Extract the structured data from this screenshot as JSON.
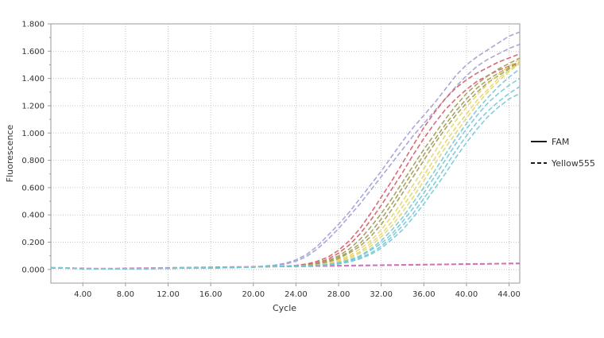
{
  "chart_data": {
    "type": "line",
    "xlabel": "Cycle",
    "ylabel": "Fluorescence",
    "xlim": [
      1,
      45
    ],
    "ylim": [
      -0.1,
      1.8
    ],
    "x_ticks": [
      4,
      8,
      12,
      16,
      20,
      24,
      28,
      32,
      36,
      40,
      44
    ],
    "x_tick_labels": [
      "4.00",
      "8.00",
      "12.00",
      "16.00",
      "20.00",
      "24.00",
      "28.00",
      "32.00",
      "36.00",
      "40.00",
      "44.00"
    ],
    "y_ticks": [
      0,
      0.2,
      0.4,
      0.6,
      0.8,
      1.0,
      1.2,
      1.4,
      1.6,
      1.8
    ],
    "y_tick_labels": [
      "0.000",
      "0.200",
      "0.400",
      "0.600",
      "0.800",
      "1.000",
      "1.200",
      "1.400",
      "1.600",
      "1.800"
    ],
    "grid": true,
    "legend": {
      "placement": "right",
      "entries": [
        {
          "name": "FAM",
          "style": "solid"
        },
        {
          "name": "Yellow555",
          "style": "dashed"
        }
      ]
    },
    "x": [
      1,
      2,
      3,
      4,
      5,
      6,
      7,
      8,
      9,
      10,
      11,
      12,
      13,
      14,
      15,
      16,
      17,
      18,
      19,
      20,
      21,
      22,
      23,
      24,
      25,
      26,
      27,
      28,
      29,
      30,
      31,
      32,
      33,
      34,
      35,
      36,
      37,
      38,
      39,
      40,
      41,
      42,
      43,
      44,
      45
    ],
    "curve_color_keys": [
      "lavender",
      "lavender",
      "red",
      "red",
      "olive",
      "olive",
      "olive",
      "yellow",
      "yellow",
      "yellow",
      "cyan",
      "cyan",
      "cyan",
      "cyan"
    ],
    "curve_values": [
      [
        0.01,
        0.01,
        0.01,
        0.005,
        0.005,
        0.005,
        0.005,
        0.005,
        0.005,
        0.005,
        0.007,
        0.008,
        0.01,
        0.01,
        0.01,
        0.01,
        0.012,
        0.014,
        0.016,
        0.02,
        0.025,
        0.032,
        0.045,
        0.07,
        0.11,
        0.17,
        0.25,
        0.33,
        0.42,
        0.52,
        0.62,
        0.72,
        0.83,
        0.94,
        1.04,
        1.13,
        1.22,
        1.32,
        1.42,
        1.5,
        1.56,
        1.61,
        1.66,
        1.71,
        1.74
      ],
      [
        0.01,
        0.01,
        0.01,
        0.005,
        0.005,
        0.005,
        0.005,
        0.005,
        0.005,
        0.005,
        0.007,
        0.008,
        0.01,
        0.01,
        0.01,
        0.01,
        0.012,
        0.014,
        0.016,
        0.018,
        0.022,
        0.028,
        0.04,
        0.06,
        0.095,
        0.15,
        0.22,
        0.3,
        0.39,
        0.48,
        0.58,
        0.68,
        0.78,
        0.88,
        0.98,
        1.07,
        1.16,
        1.25,
        1.34,
        1.42,
        1.49,
        1.54,
        1.58,
        1.62,
        1.65
      ],
      [
        0.01,
        0.01,
        0.01,
        0.005,
        0.005,
        0.005,
        0.005,
        0.005,
        0.005,
        0.005,
        0.007,
        0.008,
        0.01,
        0.01,
        0.01,
        0.01,
        0.012,
        0.014,
        0.016,
        0.018,
        0.02,
        0.022,
        0.025,
        0.03,
        0.04,
        0.06,
        0.09,
        0.14,
        0.21,
        0.3,
        0.41,
        0.53,
        0.65,
        0.78,
        0.91,
        1.04,
        1.15,
        1.25,
        1.33,
        1.39,
        1.44,
        1.48,
        1.52,
        1.55,
        1.58
      ],
      [
        0.01,
        0.01,
        0.01,
        0.005,
        0.005,
        0.005,
        0.005,
        0.005,
        0.005,
        0.005,
        0.007,
        0.008,
        0.01,
        0.01,
        0.01,
        0.01,
        0.012,
        0.014,
        0.016,
        0.018,
        0.02,
        0.022,
        0.024,
        0.028,
        0.036,
        0.05,
        0.075,
        0.12,
        0.18,
        0.26,
        0.36,
        0.47,
        0.59,
        0.71,
        0.84,
        0.96,
        1.07,
        1.17,
        1.25,
        1.32,
        1.38,
        1.42,
        1.46,
        1.49,
        1.52
      ],
      [
        0.01,
        0.01,
        0.01,
        0.005,
        0.005,
        0.005,
        0.005,
        0.005,
        0.005,
        0.005,
        0.007,
        0.008,
        0.01,
        0.01,
        0.01,
        0.01,
        0.012,
        0.014,
        0.016,
        0.018,
        0.02,
        0.022,
        0.024,
        0.027,
        0.033,
        0.045,
        0.065,
        0.1,
        0.15,
        0.22,
        0.31,
        0.41,
        0.52,
        0.64,
        0.76,
        0.88,
        0.99,
        1.1,
        1.2,
        1.29,
        1.36,
        1.42,
        1.47,
        1.51,
        1.55
      ],
      [
        0.01,
        0.01,
        0.01,
        0.005,
        0.005,
        0.005,
        0.005,
        0.005,
        0.005,
        0.005,
        0.007,
        0.008,
        0.01,
        0.01,
        0.01,
        0.01,
        0.012,
        0.014,
        0.016,
        0.018,
        0.02,
        0.022,
        0.024,
        0.026,
        0.03,
        0.04,
        0.058,
        0.09,
        0.13,
        0.19,
        0.27,
        0.37,
        0.48,
        0.6,
        0.72,
        0.84,
        0.95,
        1.06,
        1.16,
        1.25,
        1.33,
        1.39,
        1.44,
        1.48,
        1.52
      ],
      [
        0.01,
        0.01,
        0.01,
        0.005,
        0.005,
        0.005,
        0.005,
        0.005,
        0.005,
        0.005,
        0.007,
        0.008,
        0.01,
        0.01,
        0.01,
        0.01,
        0.012,
        0.014,
        0.016,
        0.018,
        0.02,
        0.022,
        0.024,
        0.026,
        0.029,
        0.037,
        0.052,
        0.08,
        0.12,
        0.17,
        0.24,
        0.33,
        0.44,
        0.56,
        0.68,
        0.8,
        0.92,
        1.03,
        1.13,
        1.22,
        1.3,
        1.37,
        1.42,
        1.47,
        1.51
      ],
      [
        0.01,
        0.01,
        0.01,
        0.005,
        0.005,
        0.005,
        0.005,
        0.005,
        0.005,
        0.005,
        0.007,
        0.008,
        0.01,
        0.01,
        0.01,
        0.01,
        0.012,
        0.014,
        0.016,
        0.018,
        0.02,
        0.022,
        0.024,
        0.026,
        0.028,
        0.034,
        0.046,
        0.07,
        0.1,
        0.15,
        0.21,
        0.29,
        0.39,
        0.5,
        0.62,
        0.74,
        0.86,
        0.98,
        1.09,
        1.19,
        1.28,
        1.36,
        1.43,
        1.49,
        1.54
      ],
      [
        0.01,
        0.01,
        0.01,
        0.005,
        0.005,
        0.005,
        0.005,
        0.005,
        0.005,
        0.005,
        0.007,
        0.008,
        0.01,
        0.01,
        0.01,
        0.01,
        0.012,
        0.014,
        0.016,
        0.018,
        0.02,
        0.022,
        0.024,
        0.026,
        0.028,
        0.032,
        0.042,
        0.062,
        0.09,
        0.13,
        0.19,
        0.26,
        0.35,
        0.46,
        0.57,
        0.69,
        0.81,
        0.93,
        1.04,
        1.14,
        1.24,
        1.32,
        1.4,
        1.46,
        1.52
      ],
      [
        0.01,
        0.01,
        0.01,
        0.005,
        0.005,
        0.005,
        0.005,
        0.005,
        0.005,
        0.005,
        0.007,
        0.008,
        0.01,
        0.01,
        0.01,
        0.01,
        0.012,
        0.014,
        0.016,
        0.018,
        0.02,
        0.022,
        0.024,
        0.026,
        0.028,
        0.031,
        0.039,
        0.056,
        0.08,
        0.12,
        0.17,
        0.24,
        0.32,
        0.42,
        0.53,
        0.65,
        0.77,
        0.89,
        1.0,
        1.11,
        1.21,
        1.3,
        1.38,
        1.45,
        1.51
      ],
      [
        0.01,
        0.01,
        0.01,
        0.005,
        0.005,
        0.005,
        0.005,
        0.005,
        0.005,
        0.005,
        0.007,
        0.008,
        0.01,
        0.01,
        0.01,
        0.01,
        0.012,
        0.014,
        0.016,
        0.018,
        0.02,
        0.022,
        0.024,
        0.026,
        0.028,
        0.03,
        0.036,
        0.05,
        0.07,
        0.1,
        0.15,
        0.21,
        0.29,
        0.38,
        0.49,
        0.6,
        0.72,
        0.84,
        0.96,
        1.07,
        1.17,
        1.26,
        1.34,
        1.41,
        1.47
      ],
      [
        0.01,
        0.01,
        0.01,
        0.005,
        0.005,
        0.005,
        0.005,
        0.005,
        0.005,
        0.005,
        0.007,
        0.008,
        0.01,
        0.01,
        0.01,
        0.01,
        0.012,
        0.014,
        0.016,
        0.018,
        0.02,
        0.022,
        0.024,
        0.026,
        0.028,
        0.03,
        0.034,
        0.046,
        0.065,
        0.095,
        0.14,
        0.19,
        0.26,
        0.35,
        0.45,
        0.56,
        0.68,
        0.8,
        0.92,
        1.03,
        1.13,
        1.22,
        1.29,
        1.35,
        1.4
      ],
      [
        0.01,
        0.01,
        0.01,
        0.005,
        0.005,
        0.005,
        0.005,
        0.005,
        0.005,
        0.005,
        0.007,
        0.008,
        0.01,
        0.01,
        0.01,
        0.01,
        0.012,
        0.014,
        0.016,
        0.018,
        0.02,
        0.022,
        0.024,
        0.026,
        0.028,
        0.03,
        0.033,
        0.043,
        0.06,
        0.085,
        0.12,
        0.17,
        0.24,
        0.32,
        0.41,
        0.52,
        0.63,
        0.75,
        0.87,
        0.98,
        1.08,
        1.16,
        1.23,
        1.29,
        1.34
      ],
      [
        0.01,
        0.01,
        0.01,
        0.005,
        0.005,
        0.005,
        0.005,
        0.005,
        0.005,
        0.005,
        0.007,
        0.008,
        0.01,
        0.01,
        0.01,
        0.01,
        0.012,
        0.014,
        0.016,
        0.018,
        0.02,
        0.022,
        0.024,
        0.026,
        0.028,
        0.03,
        0.032,
        0.04,
        0.055,
        0.078,
        0.11,
        0.155,
        0.22,
        0.29,
        0.38,
        0.48,
        0.59,
        0.7,
        0.82,
        0.93,
        1.03,
        1.12,
        1.19,
        1.25,
        1.29
      ]
    ],
    "flat_x": [
      1,
      2,
      3,
      4,
      5,
      6,
      7,
      8,
      9,
      10,
      11,
      12,
      13,
      14,
      15,
      16,
      17,
      18,
      19,
      20,
      21,
      22,
      23,
      24,
      25,
      26,
      27,
      28,
      29,
      30,
      31,
      32,
      33,
      34,
      35,
      36,
      37,
      38,
      39,
      40,
      41,
      42,
      43,
      44,
      45
    ],
    "flat_values": [
      [
        0.01,
        0.01,
        0.008,
        0.006,
        0.005,
        0.005,
        0.005,
        0.006,
        0.007,
        0.008,
        0.009,
        0.01,
        0.011,
        0.012,
        0.013,
        0.014,
        0.015,
        0.016,
        0.017,
        0.018,
        0.019,
        0.02,
        0.021,
        0.022,
        0.023,
        0.024,
        0.025,
        0.026,
        0.027,
        0.028,
        0.029,
        0.03,
        0.031,
        0.032,
        0.033,
        0.034,
        0.035,
        0.036,
        0.037,
        0.038,
        0.039,
        0.04,
        0.041,
        0.042,
        0.043
      ],
      [
        0.012,
        0.011,
        0.009,
        0.007,
        0.006,
        0.006,
        0.006,
        0.007,
        0.008,
        0.009,
        0.01,
        0.011,
        0.012,
        0.013,
        0.014,
        0.015,
        0.016,
        0.017,
        0.018,
        0.019,
        0.02,
        0.021,
        0.022,
        0.023,
        0.024,
        0.025,
        0.026,
        0.027,
        0.028,
        0.029,
        0.03,
        0.031,
        0.032,
        0.033,
        0.034,
        0.035,
        0.036,
        0.037,
        0.038,
        0.039,
        0.04,
        0.041,
        0.042,
        0.043,
        0.044
      ],
      [
        0.014,
        0.013,
        0.011,
        0.009,
        0.008,
        0.008,
        0.008,
        0.009,
        0.01,
        0.011,
        0.012,
        0.013,
        0.014,
        0.015,
        0.016,
        0.017,
        0.018,
        0.019,
        0.02,
        0.021,
        0.022,
        0.023,
        0.024,
        0.025,
        0.026,
        0.027,
        0.028,
        0.029,
        0.03,
        0.031,
        0.032,
        0.033,
        0.034,
        0.035,
        0.036,
        0.037,
        0.038,
        0.039,
        0.04,
        0.041,
        0.042,
        0.043,
        0.044,
        0.045,
        0.046
      ]
    ],
    "flat_color_key": "magenta",
    "colors": {
      "lavender": "#9d9ed3",
      "red": "#d55a67",
      "olive": "#a09a52",
      "yellow": "#e4d56b",
      "cyan": "#73c8d6",
      "magenta": "#d070b8",
      "grid": "#c7c7c7",
      "axis": "#9a9a9a",
      "text": "#333333",
      "legend_line": "#1a1a1a"
    }
  }
}
